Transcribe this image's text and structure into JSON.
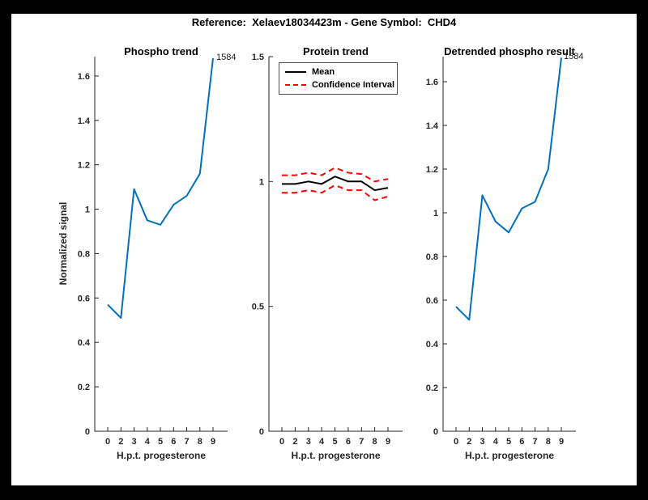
{
  "window": {
    "background": "#000000",
    "canvas_background": "#ffffff"
  },
  "header": {
    "suptitle": "Reference:  Xelaev18034423m - Gene Symbol:  CHD4"
  },
  "colors": {
    "line_blue": "#0072BD",
    "ci_red": "#ff0000",
    "mean_black": "#000000",
    "axis": "#262626"
  },
  "chart_data": [
    {
      "type": "line",
      "title": "Phospho trend",
      "xlabel": "H.p.t. progesterone",
      "ylabel": "Normalized signal",
      "x_tick_labels": [
        "0",
        "2",
        "3",
        "4",
        "5",
        "6",
        "7",
        "8",
        "9"
      ],
      "ylim": [
        0,
        1.687
      ],
      "y_tick_values": [
        0,
        0.2,
        0.4,
        0.6,
        0.8,
        1.0,
        1.2,
        1.4,
        1.6
      ],
      "y_tick_labels": [
        "0",
        "0.2",
        "0.4",
        "0.6",
        "0.8",
        "1",
        "1.2",
        "1.4",
        "1.6"
      ],
      "grid": false,
      "legend": null,
      "series": [
        {
          "name": "phospho-signal",
          "color": "#0072BD",
          "dash": null,
          "values": [
            0.57,
            0.51,
            1.09,
            0.95,
            0.93,
            1.02,
            1.06,
            1.16,
            1.68
          ]
        }
      ],
      "annotation": {
        "text": "1584",
        "at": "last-point"
      }
    },
    {
      "type": "line",
      "title": "Protein trend",
      "xlabel": "H.p.t. progesterone",
      "ylabel": null,
      "x_tick_labels": [
        "0",
        "2",
        "3",
        "4",
        "5",
        "6",
        "7",
        "8",
        "9"
      ],
      "ylim": [
        0,
        1.5
      ],
      "y_tick_values": [
        0,
        0.5,
        1.0,
        1.5
      ],
      "y_tick_labels": [
        "0",
        "0.5",
        "1",
        "1.5"
      ],
      "grid": false,
      "legend": {
        "position": "northwest",
        "entries": [
          {
            "label": "Mean",
            "color": "#000000",
            "style": "solid"
          },
          {
            "label": "Confidence Interval",
            "color": "#ff0000",
            "style": "dashed"
          }
        ]
      },
      "series": [
        {
          "name": "mean",
          "color": "#000000",
          "dash": null,
          "values": [
            0.99,
            0.99,
            1.0,
            0.99,
            1.02,
            1.0,
            1.0,
            0.965,
            0.975
          ]
        },
        {
          "name": "ci-upper",
          "color": "#ff0000",
          "dash": "7 5",
          "values": [
            1.025,
            1.025,
            1.035,
            1.025,
            1.055,
            1.035,
            1.03,
            1.0,
            1.01
          ]
        },
        {
          "name": "ci-lower",
          "color": "#ff0000",
          "dash": "7 5",
          "values": [
            0.955,
            0.955,
            0.965,
            0.955,
            0.985,
            0.965,
            0.965,
            0.925,
            0.94
          ]
        }
      ],
      "annotation": null
    },
    {
      "type": "line",
      "title": "Detrended phospho result",
      "xlabel": "H.p.t. progesterone",
      "ylabel": null,
      "x_tick_labels": [
        "0",
        "2",
        "3",
        "4",
        "5",
        "6",
        "7",
        "8",
        "9"
      ],
      "ylim": [
        0,
        1.715
      ],
      "y_tick_values": [
        0,
        0.2,
        0.4,
        0.6,
        0.8,
        1.0,
        1.2,
        1.4,
        1.6
      ],
      "y_tick_labels": [
        "0",
        "0.2",
        "0.4",
        "0.6",
        "0.8",
        "1",
        "1.2",
        "1.4",
        "1.6"
      ],
      "grid": false,
      "legend": null,
      "series": [
        {
          "name": "detrended-phospho",
          "color": "#0072BD",
          "dash": null,
          "values": [
            0.57,
            0.51,
            1.08,
            0.96,
            0.91,
            1.02,
            1.05,
            1.2,
            1.71
          ]
        }
      ],
      "annotation": {
        "text": "1584",
        "at": "last-point"
      }
    }
  ]
}
